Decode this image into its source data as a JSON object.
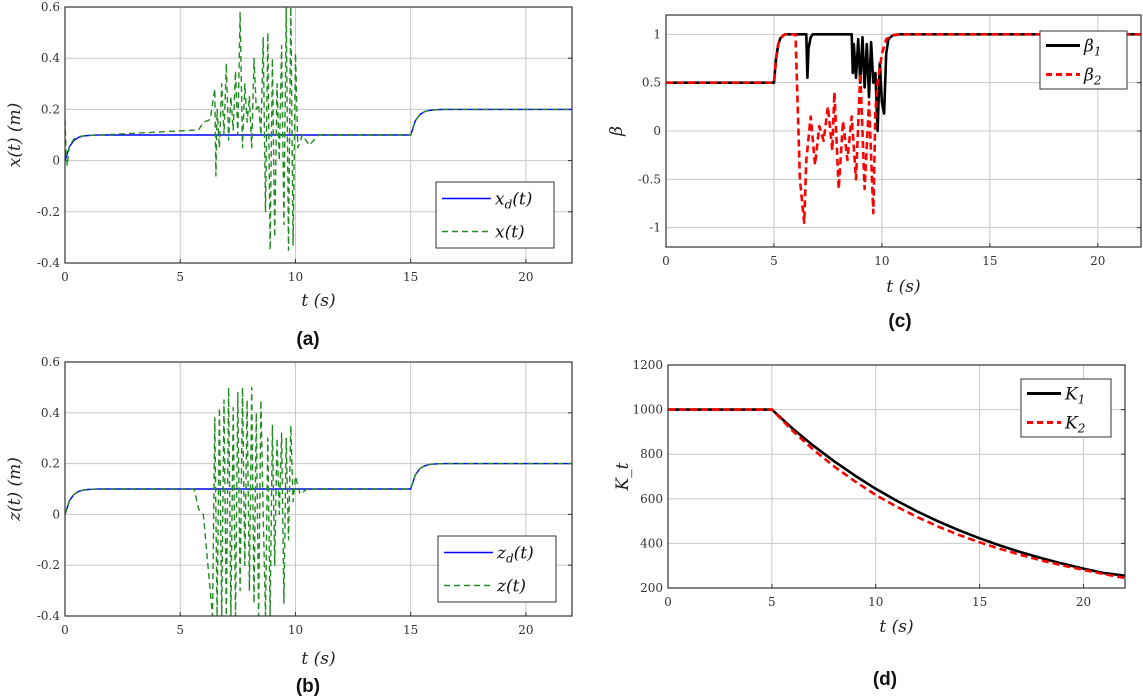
{
  "figure": {
    "captions": [
      "(a)",
      "(b)",
      "(c)",
      "(d)"
    ]
  },
  "chart_data": [
    {
      "id": "a",
      "type": "line",
      "caption": "(a)",
      "title": "",
      "xlabel": "t (s)",
      "ylabel": "x(t) (m)",
      "xlim": [
        0,
        22
      ],
      "ylim": [
        -0.4,
        0.6
      ],
      "xticks": [
        0,
        5,
        10,
        15,
        20
      ],
      "xtick_labels": [
        "0",
        "5",
        "10",
        "15",
        "20"
      ],
      "yticks": [
        -0.4,
        -0.2,
        0,
        0.2,
        0.4,
        0.6
      ],
      "ytick_labels": [
        "-0.4",
        "-0.2",
        "0",
        "0.2",
        "0.4",
        "0.6"
      ],
      "grid": true,
      "legend_position": "bottom-right",
      "series": [
        {
          "name": "x_d(t)",
          "label_main": "x",
          "label_sub": "d",
          "label_tail": "(t)",
          "color": "#0000ff",
          "style": "solid",
          "x": [
            0,
            0.2,
            0.4,
            0.6,
            0.8,
            1.0,
            1.3,
            1.6,
            15,
            15.2,
            15.4,
            15.6,
            15.8,
            16.0,
            16.3,
            16.6,
            22
          ],
          "y": [
            0,
            0.055,
            0.08,
            0.091,
            0.096,
            0.098,
            0.0995,
            0.1,
            0.1,
            0.155,
            0.18,
            0.191,
            0.196,
            0.198,
            0.1995,
            0.2,
            0.2
          ]
        },
        {
          "name": "x(t)",
          "label_main": "x",
          "label_sub": "",
          "label_tail": "(t)",
          "color": "#228b22",
          "style": "dashed",
          "x": [
            0,
            0.05,
            0.1,
            0.15,
            0.2,
            0.4,
            0.6,
            0.8,
            1.0,
            1.6,
            5.8,
            6.0,
            6.3,
            6.5,
            6.55,
            6.6,
            6.7,
            6.8,
            6.9,
            7.0,
            7.1,
            7.2,
            7.3,
            7.4,
            7.5,
            7.6,
            7.7,
            7.8,
            7.9,
            8.0,
            8.1,
            8.2,
            8.3,
            8.4,
            8.5,
            8.6,
            8.7,
            8.8,
            8.9,
            9.0,
            9.1,
            9.2,
            9.3,
            9.4,
            9.5,
            9.6,
            9.7,
            9.8,
            9.9,
            10.0,
            10.1,
            10.3,
            10.6,
            11,
            15,
            15.2,
            15.4,
            15.6,
            15.8,
            16.0,
            16.3,
            16.6,
            22
          ],
          "y": [
            0.16,
            0.02,
            -0.02,
            0.03,
            0.06,
            0.085,
            0.093,
            0.097,
            0.099,
            0.1,
            0.12,
            0.15,
            0.16,
            0.28,
            -0.06,
            0.2,
            0.05,
            0.3,
            0.1,
            0.38,
            0.08,
            0.25,
            0.12,
            0.35,
            0.1,
            0.58,
            0.05,
            0.3,
            0.15,
            0.25,
            0.05,
            0.4,
            0.2,
            0.22,
            0.1,
            0.48,
            -0.2,
            0.5,
            -0.35,
            0.4,
            -0.3,
            0.3,
            0.0,
            0.45,
            -0.25,
            0.6,
            -0.35,
            0.6,
            -0.33,
            0.42,
            0.05,
            0.1,
            0.06,
            0.1,
            0.1,
            0.155,
            0.18,
            0.191,
            0.196,
            0.198,
            0.1995,
            0.2,
            0.2
          ]
        }
      ]
    },
    {
      "id": "b",
      "type": "line",
      "caption": "(b)",
      "title": "",
      "xlabel": "t (s)",
      "ylabel": "z(t) (m)",
      "xlim": [
        0,
        22
      ],
      "ylim": [
        -0.4,
        0.6
      ],
      "xticks": [
        0,
        5,
        10,
        15,
        20
      ],
      "xtick_labels": [
        "0",
        "5",
        "10",
        "15",
        "20"
      ],
      "yticks": [
        -0.4,
        -0.2,
        0,
        0.2,
        0.4,
        0.6
      ],
      "ytick_labels": [
        "-0.4",
        "-0.2",
        "0",
        "0.2",
        "0.4",
        "0.6"
      ],
      "grid": true,
      "legend_position": "bottom-right",
      "series": [
        {
          "name": "z_d(t)",
          "label_main": "z",
          "label_sub": "d",
          "label_tail": "(t)",
          "color": "#0000ff",
          "style": "solid",
          "x": [
            0,
            0.2,
            0.4,
            0.6,
            0.8,
            1.0,
            1.3,
            1.6,
            15,
            15.2,
            15.4,
            15.6,
            15.8,
            16.0,
            16.3,
            16.6,
            22
          ],
          "y": [
            0,
            0.055,
            0.08,
            0.091,
            0.096,
            0.098,
            0.0995,
            0.1,
            0.1,
            0.155,
            0.18,
            0.191,
            0.196,
            0.198,
            0.1995,
            0.2,
            0.2
          ]
        },
        {
          "name": "z(t)",
          "label_main": "z",
          "label_sub": "",
          "label_tail": "(t)",
          "color": "#228b22",
          "style": "dashed",
          "x": [
            0,
            0.2,
            0.4,
            0.6,
            0.8,
            1.0,
            1.3,
            1.6,
            5.6,
            5.8,
            6.0,
            6.2,
            6.4,
            6.5,
            6.6,
            6.7,
            6.8,
            6.9,
            7.0,
            7.1,
            7.2,
            7.3,
            7.4,
            7.5,
            7.6,
            7.7,
            7.8,
            7.9,
            8.0,
            8.1,
            8.2,
            8.3,
            8.4,
            8.5,
            8.6,
            8.7,
            8.8,
            8.9,
            9.0,
            9.1,
            9.2,
            9.3,
            9.4,
            9.5,
            9.6,
            9.7,
            9.8,
            9.9,
            10.0,
            10.2,
            10.5,
            11,
            15,
            15.2,
            15.4,
            15.6,
            15.8,
            16.0,
            16.3,
            16.6,
            22
          ],
          "y": [
            0,
            0.055,
            0.08,
            0.091,
            0.096,
            0.098,
            0.0995,
            0.1,
            0.1,
            0.02,
            0.0,
            -0.2,
            -0.4,
            0.38,
            -0.4,
            0.42,
            -0.4,
            0.45,
            -0.4,
            0.5,
            -0.4,
            0.42,
            -0.4,
            0.48,
            -0.3,
            0.5,
            -0.2,
            0.45,
            -0.3,
            0.5,
            -0.35,
            0.4,
            -0.4,
            0.45,
            0.0,
            -0.4,
            0.3,
            -0.4,
            0.35,
            -0.2,
            0.3,
            0.0,
            0.32,
            -0.35,
            0.3,
            -0.1,
            0.35,
            0.05,
            0.15,
            0.08,
            0.1,
            0.1,
            0.1,
            0.155,
            0.18,
            0.191,
            0.196,
            0.198,
            0.1995,
            0.2,
            0.2
          ]
        }
      ]
    },
    {
      "id": "c",
      "type": "line",
      "caption": "(c)",
      "title": "",
      "xlabel": "t (s)",
      "ylabel": "β",
      "xlim": [
        0,
        22
      ],
      "ylim": [
        -1.2,
        1.2
      ],
      "xticks": [
        0,
        5,
        10,
        15,
        20
      ],
      "xtick_labels": [
        "0",
        "5",
        "10",
        "15",
        "20"
      ],
      "yticks": [
        -1,
        -0.5,
        0,
        0.5,
        1
      ],
      "ytick_labels": [
        "-1",
        "-0.5",
        "0",
        "0.5",
        "1"
      ],
      "grid": true,
      "legend_position": "top-right",
      "series": [
        {
          "name": "β1",
          "label_main": "β",
          "label_sub": "1",
          "label_tail": "",
          "color": "#000000",
          "style": "solid",
          "x": [
            0,
            5,
            5.1,
            5.2,
            5.3,
            5.5,
            6.5,
            6.55,
            6.6,
            6.7,
            6.8,
            7.0,
            8.6,
            8.65,
            8.7,
            8.8,
            8.9,
            9.0,
            9.1,
            9.2,
            9.3,
            9.4,
            9.5,
            9.6,
            9.7,
            9.8,
            9.9,
            10.0,
            10.1,
            10.2,
            10.3,
            10.5,
            10.8,
            22
          ],
          "y": [
            0.5,
            0.5,
            0.75,
            0.9,
            0.96,
            1.0,
            1.0,
            0.55,
            0.85,
            0.97,
            1.0,
            1.0,
            1.0,
            0.6,
            0.9,
            0.55,
            0.95,
            0.5,
            0.97,
            0.45,
            0.9,
            0.35,
            0.92,
            0.5,
            0.6,
            0.0,
            0.7,
            0.3,
            0.18,
            0.8,
            0.95,
            0.99,
            1.0,
            1.0
          ]
        },
        {
          "name": "β2",
          "label_main": "β",
          "label_sub": "2",
          "label_tail": "",
          "color": "#ff0000",
          "style": "dashed",
          "x": [
            0,
            5,
            5.1,
            5.2,
            5.3,
            5.5,
            6.0,
            6.2,
            6.4,
            6.5,
            6.7,
            6.9,
            7.1,
            7.3,
            7.5,
            7.7,
            7.8,
            8.0,
            8.2,
            8.4,
            8.6,
            8.8,
            9.0,
            9.2,
            9.4,
            9.6,
            9.7,
            9.8,
            10.0,
            10.2,
            10.5,
            10.8,
            22
          ],
          "y": [
            0.5,
            0.5,
            0.75,
            0.9,
            0.96,
            1.0,
            1.0,
            -0.5,
            -0.95,
            -0.3,
            0.15,
            -0.35,
            0.05,
            -0.1,
            0.25,
            -0.2,
            0.4,
            -0.6,
            0.1,
            -0.3,
            0.15,
            -0.5,
            0.6,
            -0.6,
            0.3,
            -0.85,
            0.2,
            0.5,
            0.8,
            0.95,
            0.99,
            1.0,
            1.0
          ]
        }
      ]
    },
    {
      "id": "d",
      "type": "line",
      "caption": "(d)",
      "title": "",
      "xlabel": "t (s)",
      "ylabel": "K_t",
      "xlim": [
        0,
        22
      ],
      "ylim": [
        200,
        1200
      ],
      "xticks": [
        0,
        5,
        10,
        15,
        20
      ],
      "xtick_labels": [
        "0",
        "5",
        "10",
        "15",
        "20"
      ],
      "yticks": [
        200,
        400,
        600,
        800,
        1000,
        1200
      ],
      "ytick_labels": [
        "200",
        "400",
        "600",
        "800",
        "1000",
        "1200"
      ],
      "grid": true,
      "legend_position": "top-right",
      "series": [
        {
          "name": "K1",
          "label_main": "K",
          "label_sub": "1",
          "label_tail": "",
          "color": "#000000",
          "style": "solid",
          "x": [
            0,
            5,
            6,
            7,
            8,
            9,
            10,
            11,
            12,
            13,
            14,
            15,
            16,
            17,
            18,
            19,
            20,
            21,
            22
          ],
          "y": [
            1000,
            1000,
            915,
            838,
            768,
            704,
            645,
            592,
            543,
            499,
            459,
            423,
            390,
            360,
            333,
            309,
            287,
            267,
            255
          ]
        },
        {
          "name": "K2",
          "label_main": "K",
          "label_sub": "2",
          "label_tail": "",
          "color": "#ff0000",
          "style": "dashed",
          "x": [
            0,
            5,
            6,
            7,
            8,
            9,
            10,
            11,
            12,
            13,
            14,
            15,
            16,
            17,
            18,
            19,
            20,
            21,
            22
          ],
          "y": [
            1000,
            1000,
            905,
            820,
            745,
            678,
            617,
            565,
            518,
            476,
            438,
            405,
            375,
            348,
            323,
            301,
            281,
            262,
            245
          ]
        }
      ]
    }
  ]
}
